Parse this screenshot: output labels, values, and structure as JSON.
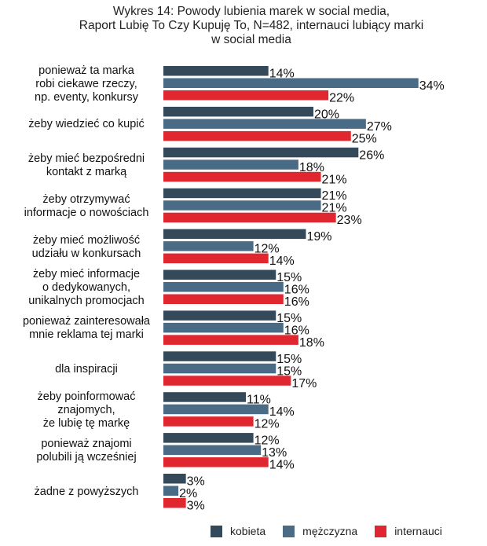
{
  "chart_data": {
    "type": "bar",
    "orientation": "horizontal",
    "title": "Wykres 14: Powody lubienia marek w social media, Raport Lubię To Czy Kupuję To, N=482, internauci lubiący marki w social media",
    "title_lines": [
      "Wykres 14: Powody lubienia marek w social media,",
      "Raport Lubię To Czy Kupuję To, N=482, internauci lubiący marki",
      "w social media"
    ],
    "categories": [
      "ponieważ ta marka robi ciekawe rzeczy, np. eventy, konkursy",
      "żeby wiedzieć co kupić",
      "żeby mieć bezpośredni kontakt z marką",
      "żeby otrzymywać informacje o nowościach",
      "żeby mieć możliwość udziału w konkursach",
      "żeby mieć informacje o dedykowanych, unikalnych promocjach",
      "ponieważ zainteresowała mnie reklama tej marki",
      "dla inspiracji",
      "żeby poinformować znajomych, że lubię tę markę",
      "ponieważ znajomi polubili ją wcześniej",
      "żadne z powyższych"
    ],
    "category_lines": [
      [
        "ponieważ ta marka",
        "robi ciekawe rzeczy,",
        "np. eventy, konkursy"
      ],
      [
        "żeby wiedzieć co kupić"
      ],
      [
        "żeby mieć bezpośredni",
        "kontakt z marką"
      ],
      [
        "żeby otrzymywać",
        "informacje o nowościach"
      ],
      [
        "żeby mieć możliwość",
        "udziału w konkursach"
      ],
      [
        "żeby mieć informacje",
        "o dedykowanych,",
        "unikalnych promocjach"
      ],
      [
        "ponieważ zainteresowała",
        "mnie reklama tej marki"
      ],
      [
        "dla inspiracji"
      ],
      [
        "żeby poinformować",
        "znajomych,",
        "że lubię tę markę"
      ],
      [
        "ponieważ znajomi",
        "polubili ją wcześniej"
      ],
      [
        "żadne z powyższych"
      ]
    ],
    "series": [
      {
        "name": "kobieta",
        "color": "#34495a",
        "values": [
          14,
          20,
          26,
          21,
          19,
          15,
          15,
          15,
          11,
          12,
          3
        ]
      },
      {
        "name": "mężczyzna",
        "color": "#4a6b86",
        "values": [
          34,
          27,
          18,
          21,
          12,
          16,
          16,
          15,
          14,
          13,
          2
        ]
      },
      {
        "name": "internauci",
        "color": "#e0262f",
        "values": [
          22,
          25,
          21,
          23,
          14,
          16,
          18,
          17,
          12,
          14,
          3
        ]
      }
    ],
    "value_suffix": "%",
    "xlim": [
      0,
      35
    ],
    "grid": false,
    "legend_position": "bottom"
  }
}
